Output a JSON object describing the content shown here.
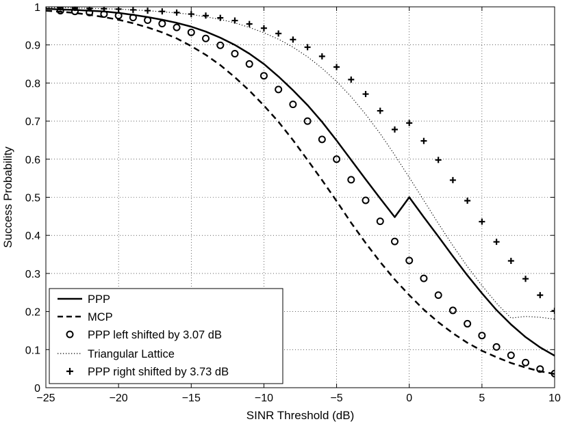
{
  "chart_data": {
    "type": "line",
    "title": "",
    "xlabel": "SINR Threshold (dB)",
    "ylabel": "Success Probability",
    "xlim": [
      -25,
      10
    ],
    "ylim": [
      0,
      1
    ],
    "xticks": [
      -25,
      -20,
      -15,
      -10,
      -5,
      0,
      5,
      10
    ],
    "xtick_labels": [
      "−25",
      "−20",
      "−15",
      "−10",
      "−5",
      "0",
      "5",
      "10"
    ],
    "yticks": [
      0,
      0.1,
      0.2,
      0.3,
      0.4,
      0.5,
      0.6,
      0.7,
      0.8,
      0.9,
      1
    ],
    "ytick_labels": [
      "0",
      "0.1",
      "0.2",
      "0.3",
      "0.4",
      "0.5",
      "0.6",
      "0.7",
      "0.8",
      "0.9",
      "1"
    ],
    "grid": true,
    "legend_position": "bottom-left",
    "x": [
      -25,
      -24,
      -23,
      -22,
      -21,
      -20,
      -19,
      -18,
      -17,
      -16,
      -15,
      -14,
      -13,
      -12,
      -11,
      -10,
      -9,
      -8,
      -7,
      -6,
      -5,
      -4,
      -3,
      -2,
      -1,
      0,
      1,
      2,
      3,
      4,
      5,
      6,
      7,
      8,
      9,
      10
    ],
    "series": [
      {
        "name": "PPP",
        "style": "solid",
        "values": [
          0.995,
          0.993,
          0.992,
          0.99,
          0.988,
          0.984,
          0.979,
          0.973,
          0.966,
          0.958,
          0.948,
          0.935,
          0.919,
          0.9,
          0.877,
          0.85,
          0.817,
          0.781,
          0.742,
          0.698,
          0.649,
          0.598,
          0.547,
          0.497,
          0.448,
          0.5,
          0.448,
          0.397,
          0.345,
          0.295,
          0.248,
          0.204,
          0.166,
          0.133,
          0.106,
          0.084
        ]
      },
      {
        "name": "MCP",
        "style": "dashed",
        "values": [
          0.99,
          0.987,
          0.984,
          0.979,
          0.973,
          0.966,
          0.957,
          0.946,
          0.933,
          0.917,
          0.897,
          0.874,
          0.847,
          0.815,
          0.78,
          0.741,
          0.698,
          0.65,
          0.598,
          0.545,
          0.49,
          0.433,
          0.38,
          0.33,
          0.284,
          0.243,
          0.205,
          0.172,
          0.143,
          0.118,
          0.097,
          0.08,
          0.065,
          0.053,
          0.043,
          0.036
        ]
      },
      {
        "name": "PPP left shifted by 3.07 dB",
        "style": "circle-markers",
        "x": [
          -24,
          -23,
          -22,
          -21,
          -20,
          -19,
          -18,
          -17,
          -16,
          -15,
          -14,
          -13,
          -12,
          -11,
          -10,
          -9,
          -8,
          -7,
          -6,
          -5,
          -4,
          -3,
          -2,
          -1,
          0,
          1,
          2,
          3,
          4,
          5,
          6,
          7,
          8,
          9,
          10
        ],
        "values": [
          0.99,
          0.988,
          0.985,
          0.981,
          0.977,
          0.972,
          0.965,
          0.956,
          0.946,
          0.933,
          0.917,
          0.899,
          0.877,
          0.85,
          0.819,
          0.783,
          0.744,
          0.7,
          0.652,
          0.6,
          0.546,
          0.492,
          0.437,
          0.384,
          0.334,
          0.287,
          0.243,
          0.203,
          0.168,
          0.137,
          0.107,
          0.085,
          0.066,
          0.049,
          0.037
        ]
      },
      {
        "name": "Triangular Lattice",
        "style": "dotted",
        "values": [
          0.998,
          0.998,
          0.997,
          0.996,
          0.995,
          0.994,
          0.992,
          0.99,
          0.987,
          0.984,
          0.98,
          0.974,
          0.967,
          0.958,
          0.946,
          0.932,
          0.915,
          0.894,
          0.869,
          0.839,
          0.804,
          0.764,
          0.718,
          0.667,
          0.611,
          0.552,
          0.492,
          0.431,
          0.373,
          0.318,
          0.268,
          0.222,
          0.183,
          0.187,
          0.185,
          0.18
        ]
      },
      {
        "name": "PPP right shifted by 3.73 dB",
        "style": "plus-markers",
        "x": [
          -24,
          -23,
          -22,
          -21,
          -20,
          -19,
          -18,
          -17,
          -16,
          -15,
          -14,
          -13,
          -12,
          -11,
          -10,
          -9,
          -8,
          -7,
          -6,
          -5,
          -4,
          -3,
          -2,
          -1,
          0,
          1,
          2,
          3,
          4,
          5,
          6,
          7,
          8,
          9,
          10
        ],
        "values": [
          0.998,
          0.997,
          0.996,
          0.995,
          0.994,
          0.992,
          0.99,
          0.988,
          0.985,
          0.981,
          0.977,
          0.971,
          0.964,
          0.955,
          0.944,
          0.93,
          0.914,
          0.894,
          0.87,
          0.842,
          0.809,
          0.771,
          0.727,
          0.678,
          0.695,
          0.648,
          0.598,
          0.545,
          0.491,
          0.436,
          0.383,
          0.333,
          0.286,
          0.243,
          0.202
        ]
      }
    ],
    "legend": [
      "PPP",
      "MCP",
      "PPP left shifted by 3.07 dB",
      "Triangular Lattice",
      "PPP right shifted by 3.73 dB"
    ]
  }
}
